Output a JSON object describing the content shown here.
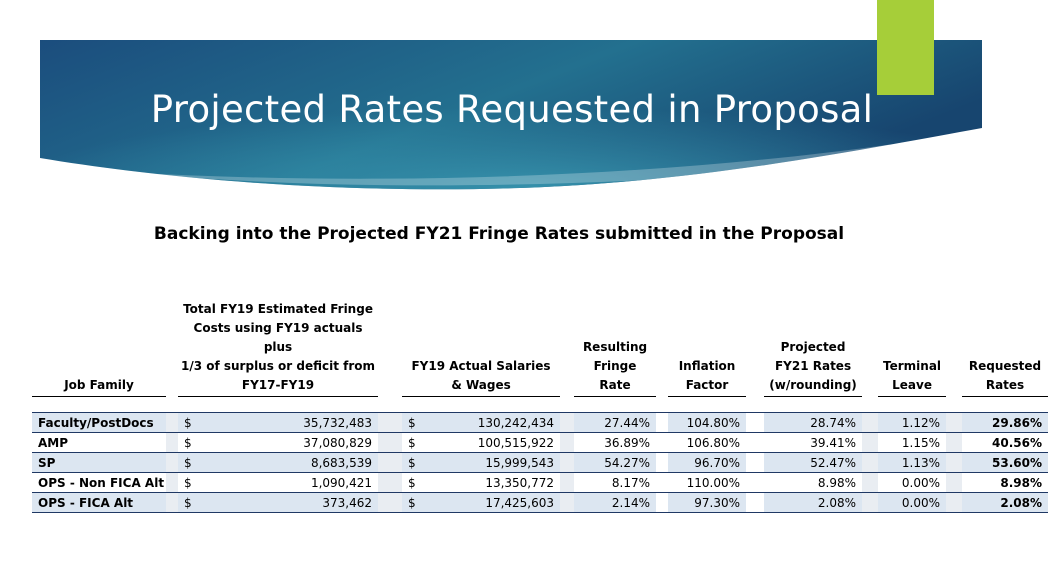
{
  "slide": {
    "title": "Projected Rates Requested in Proposal",
    "subtitle": "Backing into the Projected FY21 Fringe Rates submitted in the Proposal",
    "colors": {
      "banner_dark": "#184a78",
      "banner_light": "#2f89a6",
      "accent_green": "#a6ce39"
    }
  },
  "table": {
    "headers": {
      "job_family": "Job Family",
      "fringe_costs": [
        "Total FY19 Estimated Fringe",
        "Costs using FY19 actuals plus",
        "1/3 of surplus or deficit from",
        "FY17-FY19"
      ],
      "salaries": [
        "FY19 Actual Salaries",
        "& Wages"
      ],
      "fringe_rate": [
        "Resulting",
        "Fringe",
        "Rate"
      ],
      "inflation": [
        "Inflation",
        "Factor"
      ],
      "projected": [
        "Projected",
        "FY21 Rates",
        "(w/rounding)"
      ],
      "terminal": [
        "Terminal",
        "Leave"
      ],
      "requested": [
        "Requested",
        "Rates"
      ]
    },
    "rows": [
      {
        "family": "Faculty/PostDocs",
        "cur1": "$",
        "fringe": "35,732,483",
        "cur2": "$",
        "salaries": "130,242,434",
        "rate": "27.44%",
        "inflation": "104.80%",
        "projected": "28.74%",
        "terminal": "1.12%",
        "requested": "29.86%"
      },
      {
        "family": "AMP",
        "cur1": "$",
        "fringe": "37,080,829",
        "cur2": "$",
        "salaries": "100,515,922",
        "rate": "36.89%",
        "inflation": "106.80%",
        "projected": "39.41%",
        "terminal": "1.15%",
        "requested": "40.56%"
      },
      {
        "family": "SP",
        "cur1": "$",
        "fringe": "8,683,539",
        "cur2": "$",
        "salaries": "15,999,543",
        "rate": "54.27%",
        "inflation": "96.70%",
        "projected": "52.47%",
        "terminal": "1.13%",
        "requested": "53.60%"
      },
      {
        "family": "OPS - Non FICA Alt",
        "cur1": "$",
        "fringe": "1,090,421",
        "cur2": "$",
        "salaries": "13,350,772",
        "rate": "8.17%",
        "inflation": "110.00%",
        "projected": "8.98%",
        "terminal": "0.00%",
        "requested": "8.98%"
      },
      {
        "family": "OPS - FICA Alt",
        "cur1": "$",
        "fringe": "373,462",
        "cur2": "$",
        "salaries": "17,425,603",
        "rate": "2.14%",
        "inflation": "97.30%",
        "projected": "2.08%",
        "terminal": "0.00%",
        "requested": "2.08%"
      }
    ]
  }
}
